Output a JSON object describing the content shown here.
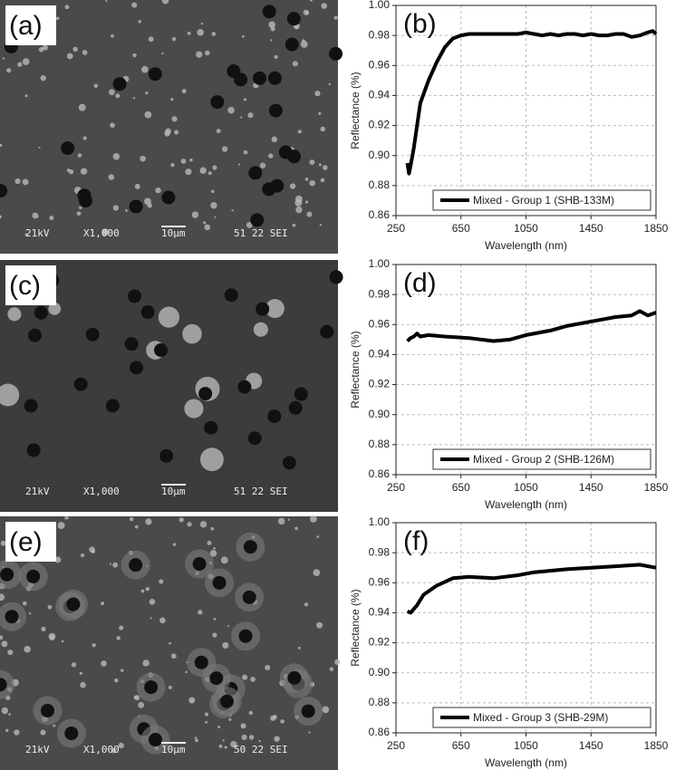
{
  "images": [
    {
      "label": "(a)",
      "voltage": "21kV",
      "magnification": "X1,000",
      "scale": "10μm",
      "info": "51 22 SEI"
    },
    {
      "label": "(c)",
      "voltage": "21kV",
      "magnification": "X1,000",
      "scale": "10μm",
      "info": "51 22 SEI"
    },
    {
      "label": "(e)",
      "voltage": "21kV",
      "magnification": "X1,000",
      "scale": "10μm",
      "info": "50 22 SEI"
    }
  ],
  "chart_data": [
    {
      "type": "line",
      "annotation": "(b)",
      "xlabel": "Wavelength (nm)",
      "ylabel": "Reflectance (%)",
      "x": [
        320,
        330,
        340,
        360,
        400,
        450,
        500,
        550,
        600,
        650,
        700,
        800,
        900,
        1000,
        1050,
        1100,
        1150,
        1200,
        1250,
        1300,
        1350,
        1400,
        1450,
        1500,
        1550,
        1600,
        1650,
        1700,
        1750,
        1800,
        1830,
        1850
      ],
      "series": [
        {
          "name": "Mixed - Group 1 (SHB-133M)",
          "color": "#000000",
          "values": [
            0.895,
            0.888,
            0.893,
            0.905,
            0.935,
            0.95,
            0.962,
            0.972,
            0.978,
            0.98,
            0.981,
            0.981,
            0.981,
            0.981,
            0.982,
            0.981,
            0.98,
            0.981,
            0.98,
            0.981,
            0.981,
            0.98,
            0.981,
            0.98,
            0.98,
            0.981,
            0.981,
            0.979,
            0.98,
            0.982,
            0.983,
            0.981
          ]
        }
      ],
      "xlim": [
        250,
        1850
      ],
      "xticks": [
        250,
        650,
        1050,
        1450,
        1850
      ],
      "ylim": [
        0.86,
        1
      ],
      "yticks": [
        0.86,
        0.88,
        {
          "value": 0.9,
          "label": "0.90"
        },
        0.92,
        0.94,
        0.96,
        0.98,
        {
          "value": 1,
          "label": "1.00"
        }
      ],
      "grid": true,
      "legend": "lower right"
    },
    {
      "type": "line",
      "annotation": "(d)",
      "xlabel": "Wavelength (nm)",
      "ylabel": "Reflectance (%)",
      "x": [
        320,
        340,
        360,
        380,
        400,
        450,
        550,
        700,
        850,
        950,
        1050,
        1200,
        1300,
        1400,
        1500,
        1600,
        1700,
        1750,
        1800,
        1850
      ],
      "series": [
        {
          "name": "Mixed - Group 2 (SHB-126M)",
          "color": "#000000",
          "values": [
            0.949,
            0.951,
            0.952,
            0.954,
            0.952,
            0.953,
            0.952,
            0.951,
            0.949,
            0.95,
            0.953,
            0.956,
            0.959,
            0.961,
            0.963,
            0.965,
            0.966,
            0.969,
            0.966,
            0.968
          ]
        }
      ],
      "xlim": [
        250,
        1850
      ],
      "xticks": [
        250,
        650,
        1050,
        1450,
        1850
      ],
      "ylim": [
        0.86,
        1
      ],
      "yticks": [
        0.86,
        0.88,
        {
          "value": 0.9,
          "label": "0.90"
        },
        0.92,
        0.94,
        0.96,
        0.98,
        {
          "value": 1,
          "label": "1.00"
        }
      ],
      "grid": true,
      "legend": "lower right"
    },
    {
      "type": "line",
      "annotation": "(f)",
      "xlabel": "Wavelength (nm)",
      "ylabel": "Reflectance (%)",
      "x": [
        320,
        340,
        380,
        420,
        500,
        600,
        700,
        850,
        1000,
        1100,
        1300,
        1450,
        1600,
        1750,
        1850
      ],
      "series": [
        {
          "name": "Mixed - Group 3 (SHB-29M)",
          "color": "#000000",
          "values": [
            0.941,
            0.94,
            0.945,
            0.952,
            0.958,
            0.963,
            0.964,
            0.963,
            0.965,
            0.967,
            0.969,
            0.97,
            0.971,
            0.972,
            0.97
          ]
        }
      ],
      "xlim": [
        250,
        1850
      ],
      "xticks": [
        250,
        650,
        1050,
        1450,
        1850
      ],
      "ylim": [
        0.86,
        1
      ],
      "yticks": [
        0.86,
        0.88,
        {
          "value": 0.9,
          "label": "0.90"
        },
        0.92,
        0.94,
        0.96,
        0.98,
        {
          "value": 1,
          "label": "1.00"
        }
      ],
      "grid": true,
      "legend": "lower right"
    }
  ]
}
